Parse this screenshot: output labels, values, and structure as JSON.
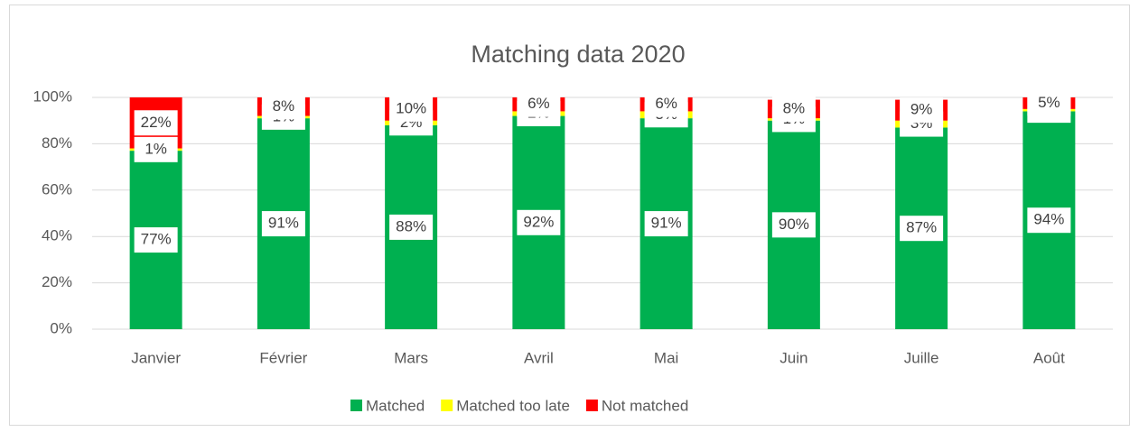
{
  "chart_data": {
    "type": "stacked_bar",
    "title": "Matching data 2020",
    "categories": [
      "Janvier",
      "Février",
      "Mars",
      "Avril",
      "Mai",
      "Juin",
      "Juille",
      "Août"
    ],
    "series": [
      {
        "name": "Matched",
        "color": "#00b050",
        "values": [
          77,
          91,
          88,
          92,
          91,
          90,
          87,
          94
        ],
        "value_labels": [
          "77%",
          "91%",
          "88%",
          "92%",
          "91%",
          "90%",
          "87%",
          "94%"
        ]
      },
      {
        "name": "Matched too late",
        "color": "#ffff00",
        "values": [
          1,
          1,
          2,
          2,
          3,
          1,
          3,
          1
        ],
        "value_labels": [
          "1%",
          "1%",
          "2%",
          "2%",
          "3%",
          "1%",
          "3%",
          "1%"
        ]
      },
      {
        "name": "Not matched",
        "color": "#ff0000",
        "values": [
          22,
          8,
          10,
          6,
          6,
          8,
          9,
          5
        ],
        "value_labels": [
          "22%",
          "8%",
          "10%",
          "6%",
          "6%",
          "8%",
          "9%",
          "5%"
        ]
      }
    ],
    "ylim": [
      0,
      100
    ],
    "yticks": [
      {
        "value": 0,
        "label": "0%"
      },
      {
        "value": 20,
        "label": "20%"
      },
      {
        "value": 40,
        "label": "40%"
      },
      {
        "value": 60,
        "label": "60%"
      },
      {
        "value": 80,
        "label": "80%"
      },
      {
        "value": 100,
        "label": "100%"
      }
    ],
    "grid": true,
    "legend": "bottom"
  }
}
